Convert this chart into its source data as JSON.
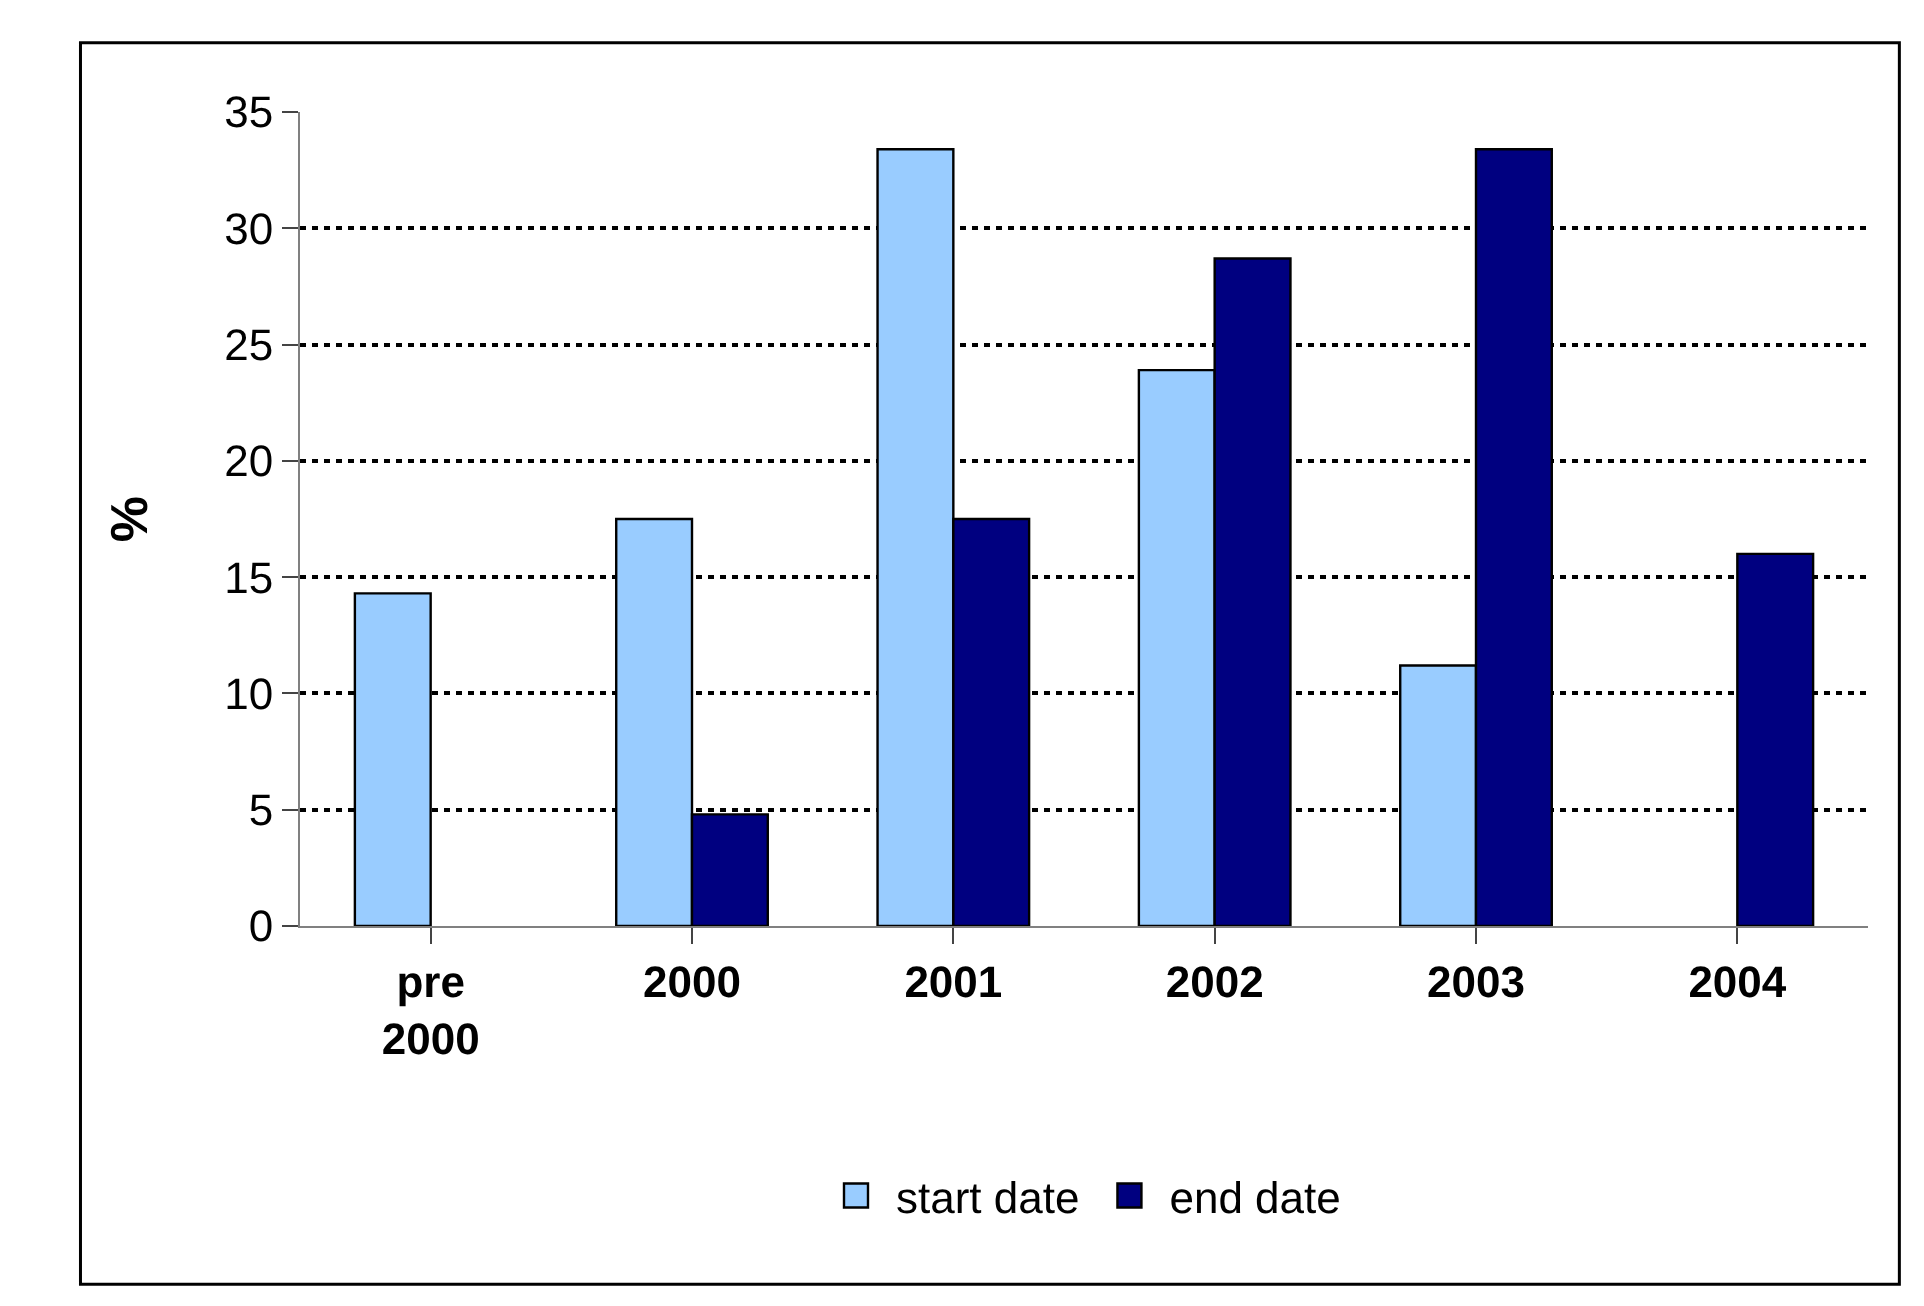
{
  "chart_data": {
    "type": "bar",
    "ylabel": "%",
    "categories": [
      "pre 2000",
      "2000",
      "2001",
      "2002",
      "2003",
      "2004"
    ],
    "series": [
      {
        "name": "start date",
        "color": "#99ccff",
        "values": [
          14.3,
          17.5,
          33.4,
          23.9,
          11.2,
          null
        ]
      },
      {
        "name": "end date",
        "color": "#000080",
        "values": [
          null,
          4.8,
          17.5,
          28.7,
          33.4,
          16.0
        ]
      }
    ],
    "ylim": [
      0,
      35
    ],
    "yticks": [
      0,
      5,
      10,
      15,
      20,
      25,
      30,
      35
    ],
    "grid": "y",
    "legend": "bottom"
  }
}
